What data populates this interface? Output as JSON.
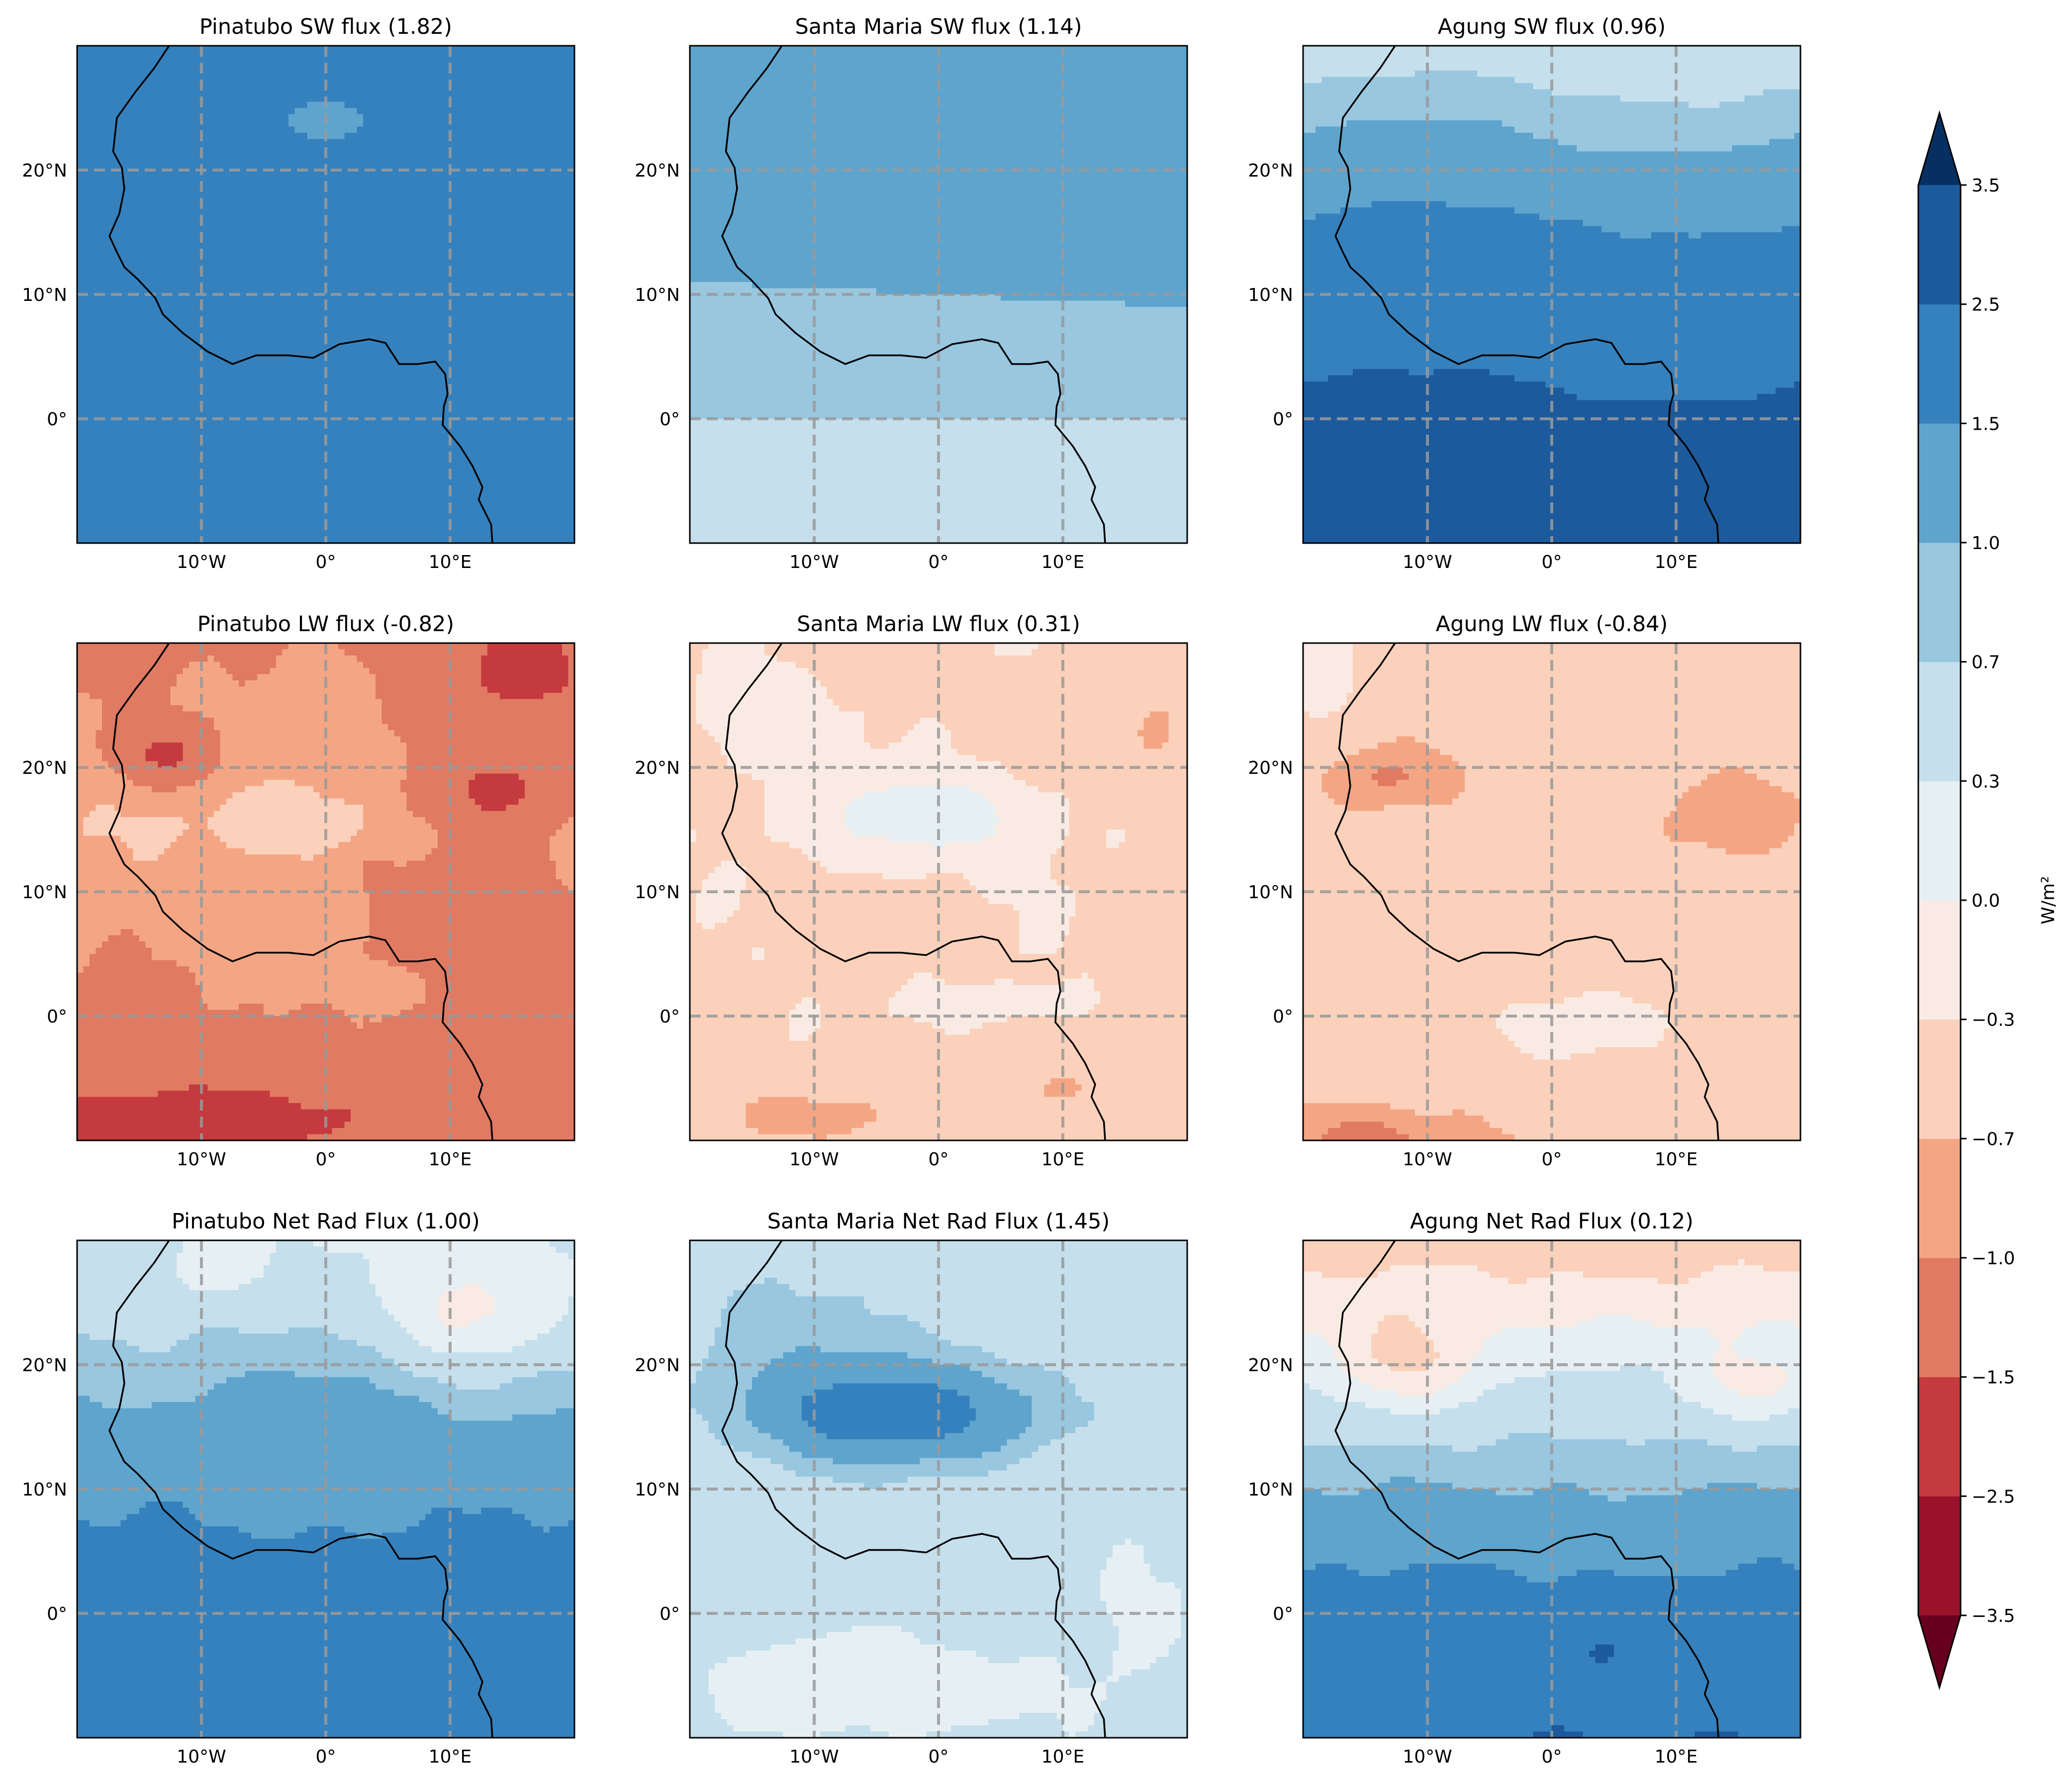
{
  "panels": [
    {
      "title": "Pinatubo SW flux (1.82)",
      "field": "pin_sw"
    },
    {
      "title": "Santa Maria SW flux (1.14)",
      "field": "sm_sw"
    },
    {
      "title": "Agung SW flux (0.96)",
      "field": "ag_sw"
    },
    {
      "title": "Pinatubo LW flux (-0.82)",
      "field": "pin_lw"
    },
    {
      "title": "Santa Maria LW flux (0.31)",
      "field": "sm_lw"
    },
    {
      "title": "Agung LW flux (-0.84)",
      "field": "ag_lw"
    },
    {
      "title": "Pinatubo Net Rad Flux (1.00)",
      "field": "pin_net"
    },
    {
      "title": "Santa Maria Net Rad Flux (1.45)",
      "field": "sm_net"
    },
    {
      "title": "Agung Net Rad Flux (0.12)",
      "field": "ag_net"
    }
  ],
  "map_extent": {
    "lon": [
      -20,
      20
    ],
    "lat": [
      -10,
      30
    ]
  },
  "gridlines": {
    "lon": [
      -10,
      0,
      10
    ],
    "lat": [
      0,
      10,
      20
    ]
  },
  "x_tick_labels": [
    "10°W",
    "0°",
    "10°E"
  ],
  "y_tick_labels": [
    "0°",
    "10°N",
    "20°N"
  ],
  "colorbar": {
    "levels": [
      -3.5,
      -2.5,
      -1.5,
      -1.0,
      -0.7,
      -0.3,
      0.0,
      0.3,
      0.7,
      1.0,
      1.5,
      2.5,
      3.5
    ],
    "tick_labels": [
      "−3.5",
      "−2.5",
      "−1.5",
      "−1.0",
      "−0.7",
      "−0.3",
      "0.0",
      "0.3",
      "0.7",
      "1.0",
      "1.5",
      "2.5",
      "3.5"
    ],
    "label": "W/m²",
    "colormap": "RdBu",
    "colors": [
      "#99122a",
      "#c53a3e",
      "#e07a62",
      "#f4a684",
      "#fbd1bb",
      "#f9ebe4",
      "#e6eff3",
      "#c5dfec",
      "#98c7df",
      "#5ea4cd",
      "#3581bd",
      "#1c5a9c"
    ],
    "under_color": "#67001f",
    "over_color": "#053061",
    "extend": "both"
  }
}
